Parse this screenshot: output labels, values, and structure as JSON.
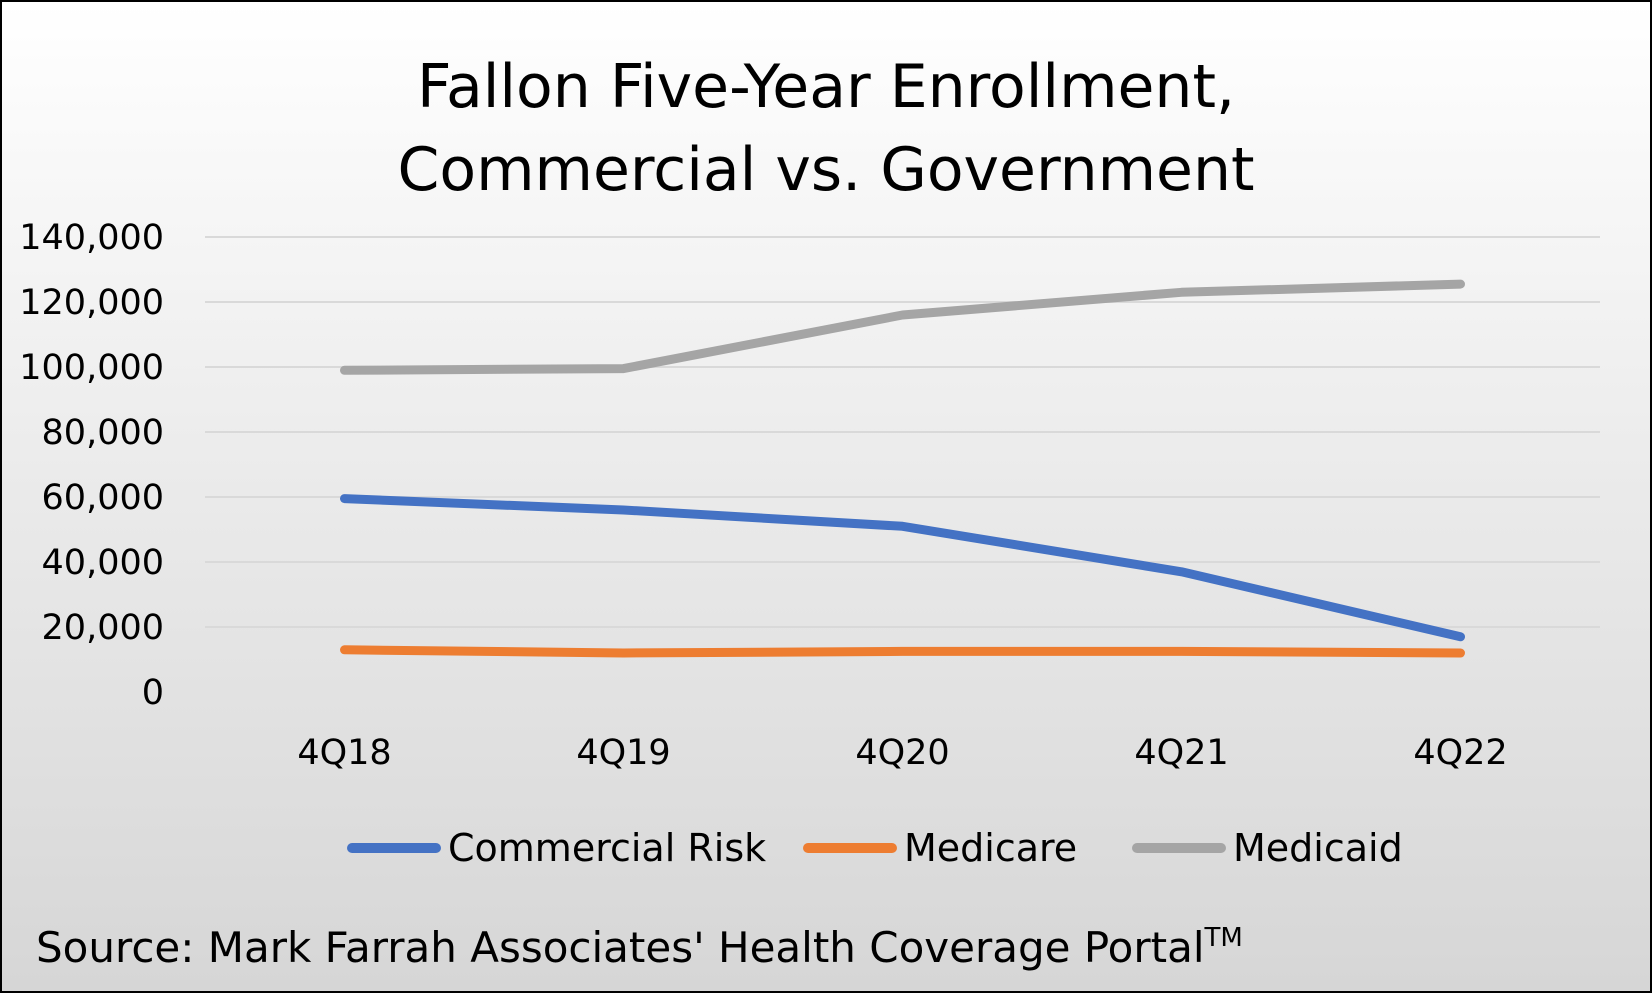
{
  "chart_data": {
    "type": "line",
    "title_lines": [
      "Fallon Five-Year Enrollment,",
      "Commercial vs. Government"
    ],
    "xlabel": "",
    "ylabel": "",
    "categories": [
      "4Q18",
      "4Q19",
      "4Q20",
      "4Q21",
      "4Q22"
    ],
    "ylim": [
      0,
      140000
    ],
    "yticks": [
      0,
      20000,
      40000,
      60000,
      80000,
      100000,
      120000,
      140000
    ],
    "ytick_labels": [
      "0",
      "20,000",
      "40,000",
      "60,000",
      "80,000",
      "100,000",
      "120,000",
      "140,000"
    ],
    "grid": true,
    "legend_position": "bottom",
    "series": [
      {
        "name": "Commercial Risk",
        "color": "#4472C4",
        "values": [
          59500,
          56000,
          51000,
          37000,
          17000
        ]
      },
      {
        "name": "Medicare",
        "color": "#ED7D31",
        "values": [
          13000,
          12000,
          12500,
          12500,
          12000
        ]
      },
      {
        "name": "Medicaid",
        "color": "#A5A5A5",
        "values": [
          99000,
          99500,
          116000,
          123000,
          125500
        ]
      }
    ],
    "source": {
      "text": "Source: Mark Farrah Associates' Health Coverage Portal",
      "trademark": "TM"
    }
  }
}
